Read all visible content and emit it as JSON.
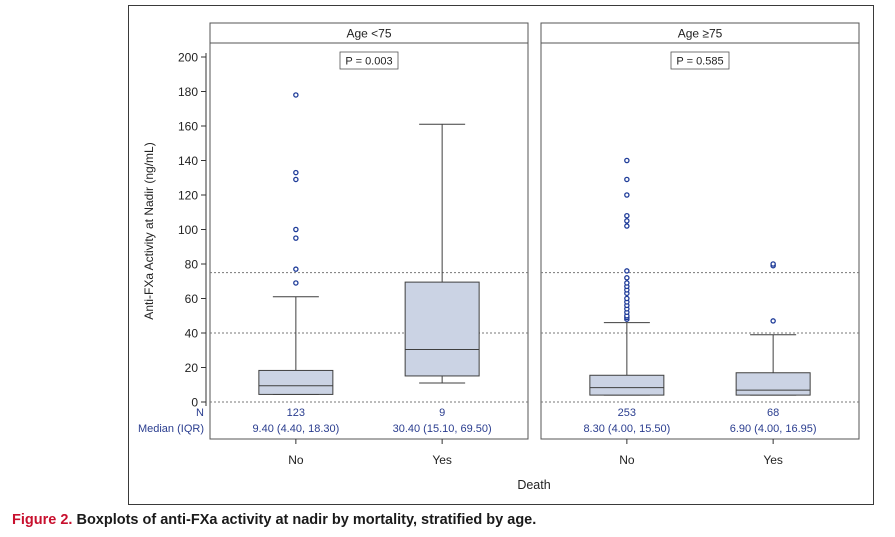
{
  "chart_data": {
    "type": "boxplot",
    "ylabel": "Anti-FXa Activity at Nadir (ng/mL)",
    "xlabel": "Death",
    "ylim": [
      0,
      200
    ],
    "yticks": [
      0,
      20,
      40,
      60,
      80,
      100,
      120,
      140,
      160,
      180,
      200
    ],
    "reference_lines": [
      40,
      75
    ],
    "row_labels": {
      "n": "N",
      "median": "Median (IQR)"
    },
    "panels": [
      {
        "title": "Age <75",
        "p_value": "P = 0.003",
        "groups": [
          {
            "category": "No",
            "n": "123",
            "median_iqr": "9.40 (4.40, 18.30)",
            "min": 4.4,
            "q1": 4.4,
            "median": 9.4,
            "q3": 18.3,
            "whisker_high": 61,
            "outliers": [
              69,
              77,
              95,
              100,
              129,
              133,
              178
            ]
          },
          {
            "category": "Yes",
            "n": "9",
            "median_iqr": "30.40 (15.10, 69.50)",
            "min": 11,
            "q1": 15.1,
            "median": 30.4,
            "q3": 69.5,
            "whisker_high": 161,
            "outliers": []
          }
        ]
      },
      {
        "title": "Age ≥75",
        "p_value": "P = 0.585",
        "groups": [
          {
            "category": "No",
            "n": "253",
            "median_iqr": "8.30 (4.00, 15.50)",
            "min": 4.0,
            "q1": 4.0,
            "median": 8.3,
            "q3": 15.5,
            "whisker_high": 46,
            "outliers": [
              48,
              49,
              50,
              52,
              54,
              56,
              58,
              60,
              63,
              65,
              67,
              69,
              72,
              76,
              102,
              105,
              108,
              120,
              129,
              140
            ]
          },
          {
            "category": "Yes",
            "n": "68",
            "median_iqr": "6.90 (4.00, 16.95)",
            "min": 4.0,
            "q1": 4.0,
            "median": 6.9,
            "q3": 16.95,
            "whisker_high": 39,
            "outliers": [
              47,
              79,
              80
            ]
          }
        ]
      }
    ]
  },
  "caption": {
    "label": "Figure 2.",
    "text": "Boxplots of anti-FXa activity at nadir by mortality, stratified by age."
  },
  "colors": {
    "box_fill": "#cbd3e4",
    "box_stroke": "#3f3f3f",
    "outlier": "#1f3c99",
    "annotation_text": "#2a3d8f",
    "reference_line": "#777777",
    "caption_label": "#c8102e"
  }
}
